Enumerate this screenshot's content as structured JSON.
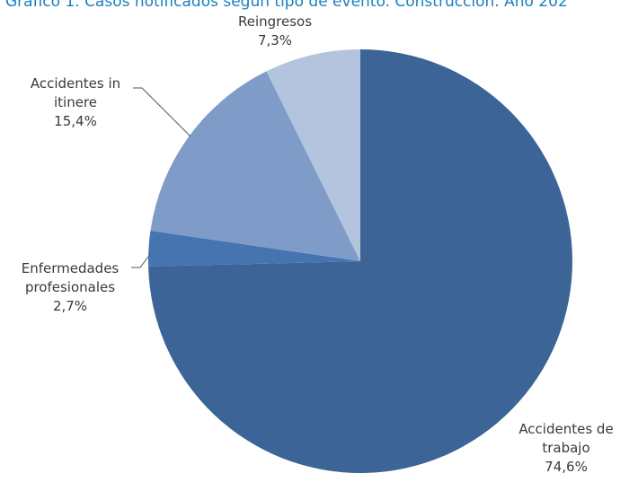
{
  "chart_data": {
    "type": "pie",
    "title": "Gráfico 1. Casos notificados según tipo de evento. Construcción. Año 202",
    "slices": [
      {
        "label_lines": [
          "Accidentes de",
          "trabajo"
        ],
        "percent_label": "74,6%",
        "value": 74.6,
        "color": "#3d6496"
      },
      {
        "label_lines": [
          "Enfermedades",
          "profesionales"
        ],
        "percent_label": "2,7%",
        "value": 2.7,
        "color": "#4574b0"
      },
      {
        "label_lines": [
          "Accidentes  in",
          "itinere"
        ],
        "percent_label": "15,4%",
        "value": 15.4,
        "color": "#7e9cc7"
      },
      {
        "label_lines": [
          "Reingresos"
        ],
        "percent_label": "7,3%",
        "value": 7.3,
        "color": "#b5c4de"
      }
    ],
    "start_angle_deg": 0,
    "direction": "clockwise",
    "legend": "none"
  }
}
